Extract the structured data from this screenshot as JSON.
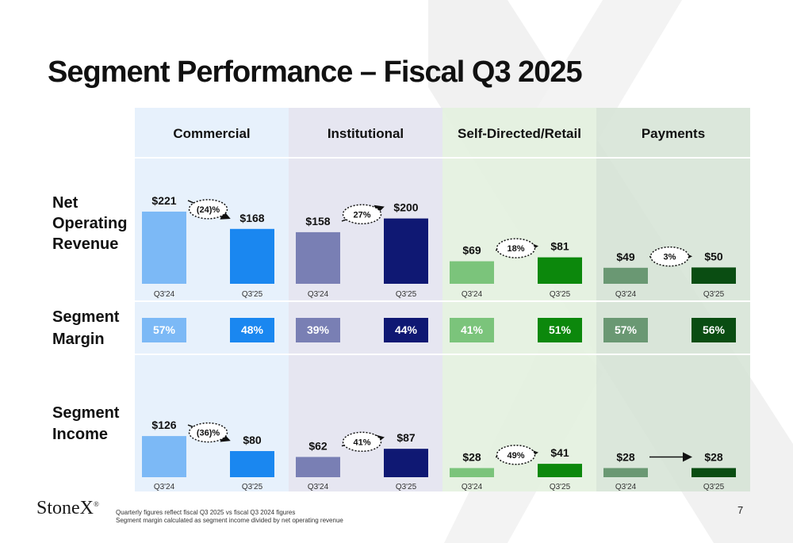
{
  "page": {
    "title": "Segment Performance – Fiscal Q3 2025",
    "logo": "StoneX",
    "footnote_1": "Quarterly figures reflect fiscal Q3 2025 vs fiscal Q3 2024 figures",
    "footnote_2": "Segment margin calculated as segment income divided by net operating revenue",
    "page_number": "7"
  },
  "chart_data": {
    "type": "bar",
    "title": "Segment Performance – Fiscal Q3 2025",
    "periods": [
      "Q3'24",
      "Q3'25"
    ],
    "segments": [
      {
        "name": "Commercial",
        "color_prior": "#7cb9f6",
        "color_current": "#1a87f0",
        "panel_bg": "#e4effc"
      },
      {
        "name": "Institutional",
        "color_prior": "#797fb4",
        "color_current": "#0f1873",
        "panel_bg": "#e3e3ef"
      },
      {
        "name": "Self-Directed/Retail",
        "color_prior": "#7bc47b",
        "color_current": "#0c880c",
        "panel_bg": "#e3f1df"
      },
      {
        "name": "Payments",
        "color_prior": "#6a9873",
        "color_current": "#0a4d12",
        "panel_bg": "#d5e3d5"
      }
    ],
    "rows": [
      {
        "label_lines": [
          "Net",
          "Operating",
          "Revenue"
        ],
        "prefix": "$",
        "values": [
          [
            221,
            168
          ],
          [
            158,
            200
          ],
          [
            69,
            81
          ],
          [
            49,
            50
          ]
        ],
        "changes": [
          "(24)%",
          "27%",
          "18%",
          "3%"
        ]
      },
      {
        "label_lines": [
          "Segment",
          "Margin"
        ],
        "suffix": "%",
        "values": [
          [
            57,
            48
          ],
          [
            39,
            44
          ],
          [
            41,
            51
          ],
          [
            57,
            56
          ]
        ]
      },
      {
        "label_lines": [
          "Segment",
          "Income"
        ],
        "prefix": "$",
        "values": [
          [
            126,
            80
          ],
          [
            62,
            87
          ],
          [
            28,
            41
          ],
          [
            28,
            28
          ]
        ],
        "changes": [
          "(36)%",
          "41%",
          "49%",
          ""
        ]
      }
    ]
  }
}
